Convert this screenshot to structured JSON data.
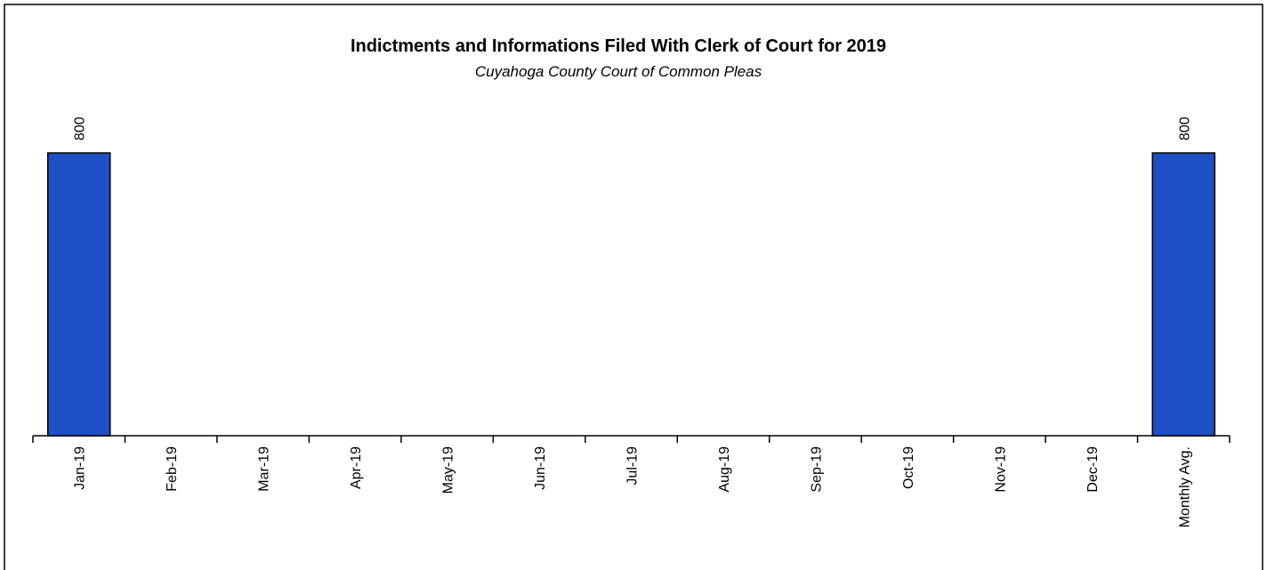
{
  "chart_data": {
    "type": "bar",
    "title": "Indictments and Informations Filed With Clerk of Court for 2019",
    "subtitle": "Cuyahoga County Court of Common Pleas",
    "categories": [
      "Jan-19",
      "Feb-19",
      "Mar-19",
      "Apr-19",
      "May-19",
      "Jun-19",
      "Jul-19",
      "Aug-19",
      "Sep-19",
      "Oct-19",
      "Nov-19",
      "Dec-19",
      "Monthly Avg."
    ],
    "values": [
      800,
      null,
      null,
      null,
      null,
      null,
      null,
      null,
      null,
      null,
      null,
      null,
      800
    ],
    "color": "#1f4fc4"
  }
}
